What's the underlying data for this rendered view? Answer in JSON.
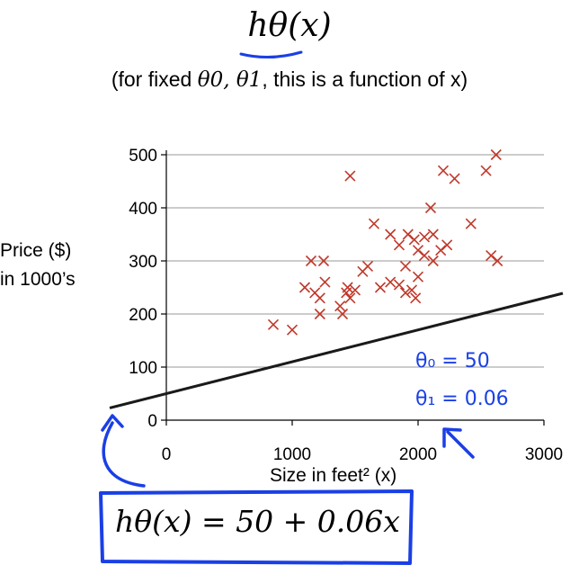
{
  "header": {
    "title": "hθ(x)",
    "subtitle_prefix": "(for fixed ",
    "subtitle_math": "θ0, θ1",
    "subtitle_suffix": ", this is a function of x)"
  },
  "equation": {
    "text": "hθ(x) = 50 + 0.06x"
  },
  "annotations": {
    "theta0": "θ₀ = 50",
    "theta1": "θ₁ = 0.06"
  },
  "colors": {
    "points": "#c0392b",
    "ink": "#1a3fe6",
    "line": "#1a1a1a"
  },
  "chart_data": {
    "type": "scatter",
    "ylabel_line1": "Price ($)",
    "ylabel_line2": "in 1000’s",
    "xlabel": "Size in feet² (x)",
    "xlim": [
      0,
      3000
    ],
    "ylim": [
      0,
      500
    ],
    "xticks": [
      0,
      1000,
      2000,
      3000
    ],
    "yticks": [
      0,
      100,
      200,
      300,
      400,
      500
    ],
    "grid": true,
    "points": [
      [
        850,
        180
      ],
      [
        1000,
        170
      ],
      [
        1150,
        300
      ],
      [
        1250,
        300
      ],
      [
        1100,
        250
      ],
      [
        1180,
        240
      ],
      [
        1220,
        230
      ],
      [
        1260,
        260
      ],
      [
        1220,
        200
      ],
      [
        1400,
        200
      ],
      [
        1380,
        215
      ],
      [
        1430,
        240
      ],
      [
        1440,
        250
      ],
      [
        1460,
        230
      ],
      [
        1500,
        245
      ],
      [
        1560,
        280
      ],
      [
        1600,
        290
      ],
      [
        1700,
        250
      ],
      [
        1780,
        260
      ],
      [
        1850,
        255
      ],
      [
        1900,
        240
      ],
      [
        1950,
        245
      ],
      [
        1980,
        230
      ],
      [
        2000,
        270
      ],
      [
        1900,
        290
      ],
      [
        2000,
        320
      ],
      [
        2050,
        310
      ],
      [
        2120,
        300
      ],
      [
        1850,
        330
      ],
      [
        1920,
        350
      ],
      [
        1970,
        340
      ],
      [
        2050,
        345
      ],
      [
        2120,
        350
      ],
      [
        2180,
        320
      ],
      [
        2230,
        330
      ],
      [
        1650,
        370
      ],
      [
        2420,
        370
      ],
      [
        2100,
        400
      ],
      [
        2200,
        470
      ],
      [
        2290,
        455
      ],
      [
        2540,
        470
      ],
      [
        2620,
        500
      ],
      [
        2580,
        310
      ],
      [
        2630,
        300
      ],
      [
        1460,
        460
      ],
      [
        1780,
        350
      ]
    ],
    "line": {
      "intercept": 50,
      "slope": 0.06,
      "x_start": -450,
      "x_end": 3150
    }
  }
}
